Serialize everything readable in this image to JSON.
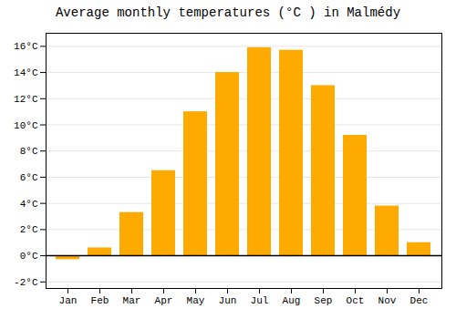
{
  "chart_data": {
    "type": "bar",
    "title": "Average monthly temperatures (°C ) in Malmédy",
    "categories": [
      "Jan",
      "Feb",
      "Mar",
      "Apr",
      "May",
      "Jun",
      "Jul",
      "Aug",
      "Sep",
      "Oct",
      "Nov",
      "Dec"
    ],
    "values": [
      -0.3,
      0.6,
      3.3,
      6.5,
      11.0,
      14.0,
      15.9,
      15.7,
      13.0,
      9.2,
      3.8,
      1.0
    ],
    "color": "#FFAA00",
    "ylim": [
      -2.5,
      17
    ],
    "yticks": [
      {
        "value": -2,
        "label": "-2°C"
      },
      {
        "value": 0,
        "label": "0°C"
      },
      {
        "value": 2,
        "label": "2°C"
      },
      {
        "value": 4,
        "label": "4°C"
      },
      {
        "value": 6,
        "label": "6°C"
      },
      {
        "value": 8,
        "label": "8°C"
      },
      {
        "value": 10,
        "label": "10°C"
      },
      {
        "value": 12,
        "label": "12°C"
      },
      {
        "value": 14,
        "label": "14°C"
      },
      {
        "value": 16,
        "label": "16°C"
      }
    ],
    "grid": true
  }
}
